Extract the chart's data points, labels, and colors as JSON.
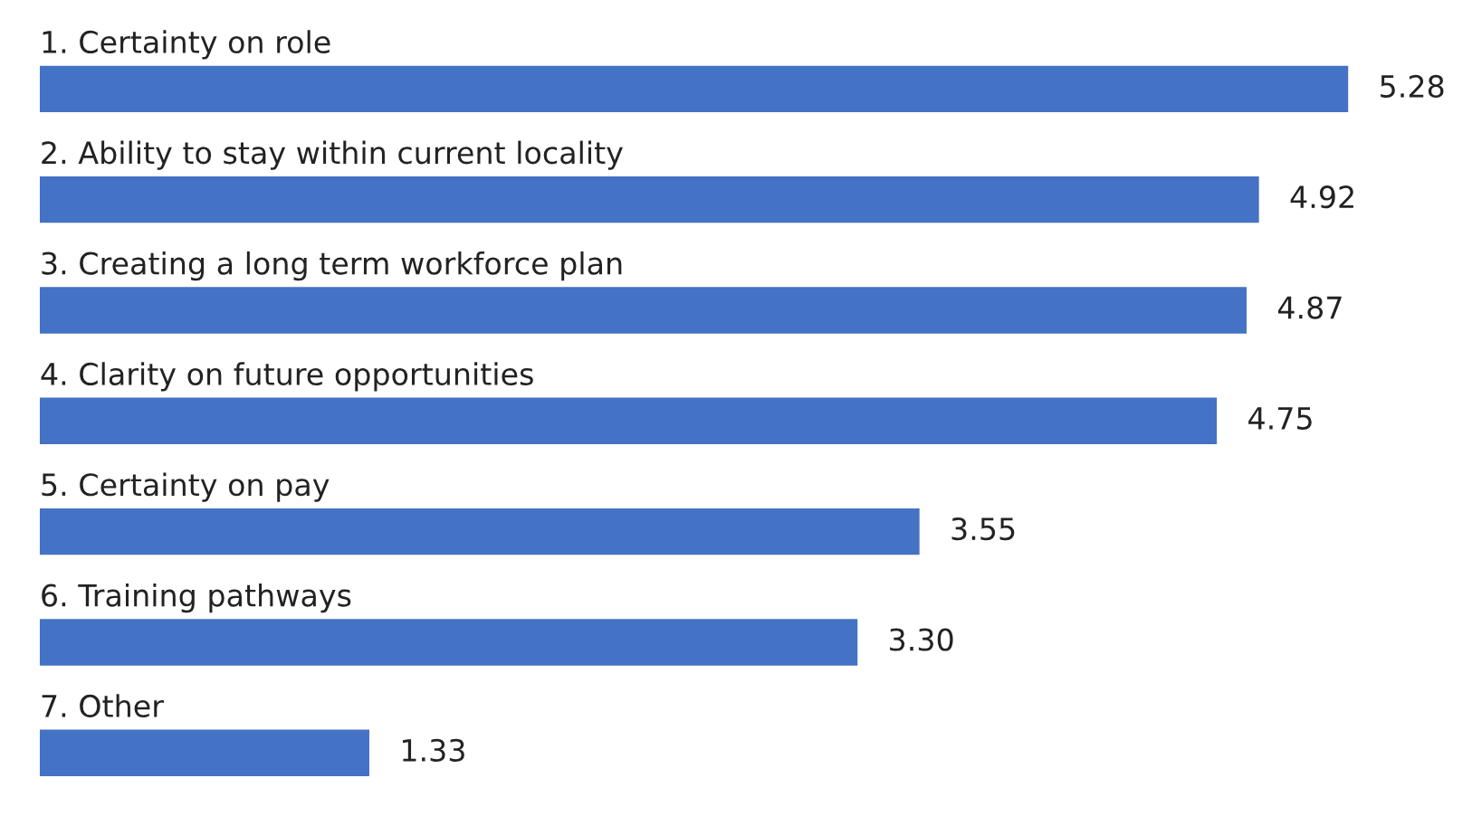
{
  "chart_data": {
    "type": "bar",
    "orientation": "horizontal",
    "categories": [
      "1. Certainty on role",
      "2. Ability to stay within current locality",
      "3. Creating a long term workforce plan",
      "4. Clarity on future opportunities",
      "5. Certainty on pay",
      "6. Training pathways",
      "7. Other"
    ],
    "values": [
      5.28,
      4.92,
      4.87,
      4.75,
      3.55,
      3.3,
      1.33
    ],
    "value_labels": [
      "5.28",
      "4.92",
      "4.87",
      "4.75",
      "3.55",
      "3.30",
      "1.33"
    ],
    "color": "#4472c4"
  }
}
